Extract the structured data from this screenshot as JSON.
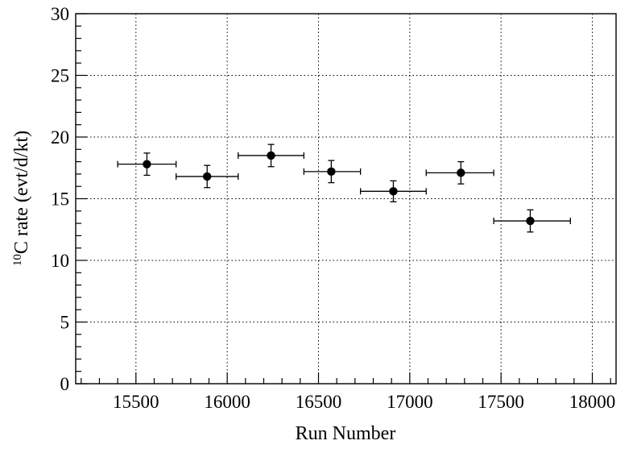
{
  "chart_data": {
    "type": "scatter",
    "title": "",
    "xlabel": "Run Number",
    "ylabel": {
      "superscript": "10",
      "text": "C rate (evt/d/kt)"
    },
    "xlim": [
      15170,
      18130
    ],
    "ylim": [
      0,
      30
    ],
    "xticks": [
      15500,
      16000,
      16500,
      17000,
      17500,
      18000
    ],
    "xtick_labels": [
      "15500",
      "16000",
      "16500",
      "17000",
      "17500",
      "18000"
    ],
    "yticks": [
      0,
      5,
      10,
      15,
      20,
      25,
      30
    ],
    "ytick_labels": [
      "0",
      "5",
      "10",
      "15",
      "20",
      "25",
      "30"
    ],
    "grid": true,
    "grid_style": "dotted",
    "marker_color": "#000000",
    "points": [
      {
        "x": 15560,
        "y": 17.8,
        "x_lo": 15400,
        "x_hi": 15720,
        "y_err": 0.9
      },
      {
        "x": 15890,
        "y": 16.8,
        "x_lo": 15720,
        "x_hi": 16060,
        "y_err": 0.9
      },
      {
        "x": 16240,
        "y": 18.5,
        "x_lo": 16060,
        "x_hi": 16420,
        "y_err": 0.9
      },
      {
        "x": 16570,
        "y": 17.2,
        "x_lo": 16420,
        "x_hi": 16730,
        "y_err": 0.9
      },
      {
        "x": 16910,
        "y": 15.6,
        "x_lo": 16730,
        "x_hi": 17090,
        "y_err": 0.85
      },
      {
        "x": 17280,
        "y": 17.1,
        "x_lo": 17090,
        "x_hi": 17460,
        "y_err": 0.9
      },
      {
        "x": 17660,
        "y": 13.2,
        "x_lo": 17460,
        "x_hi": 17880,
        "y_err": 0.9
      }
    ]
  }
}
